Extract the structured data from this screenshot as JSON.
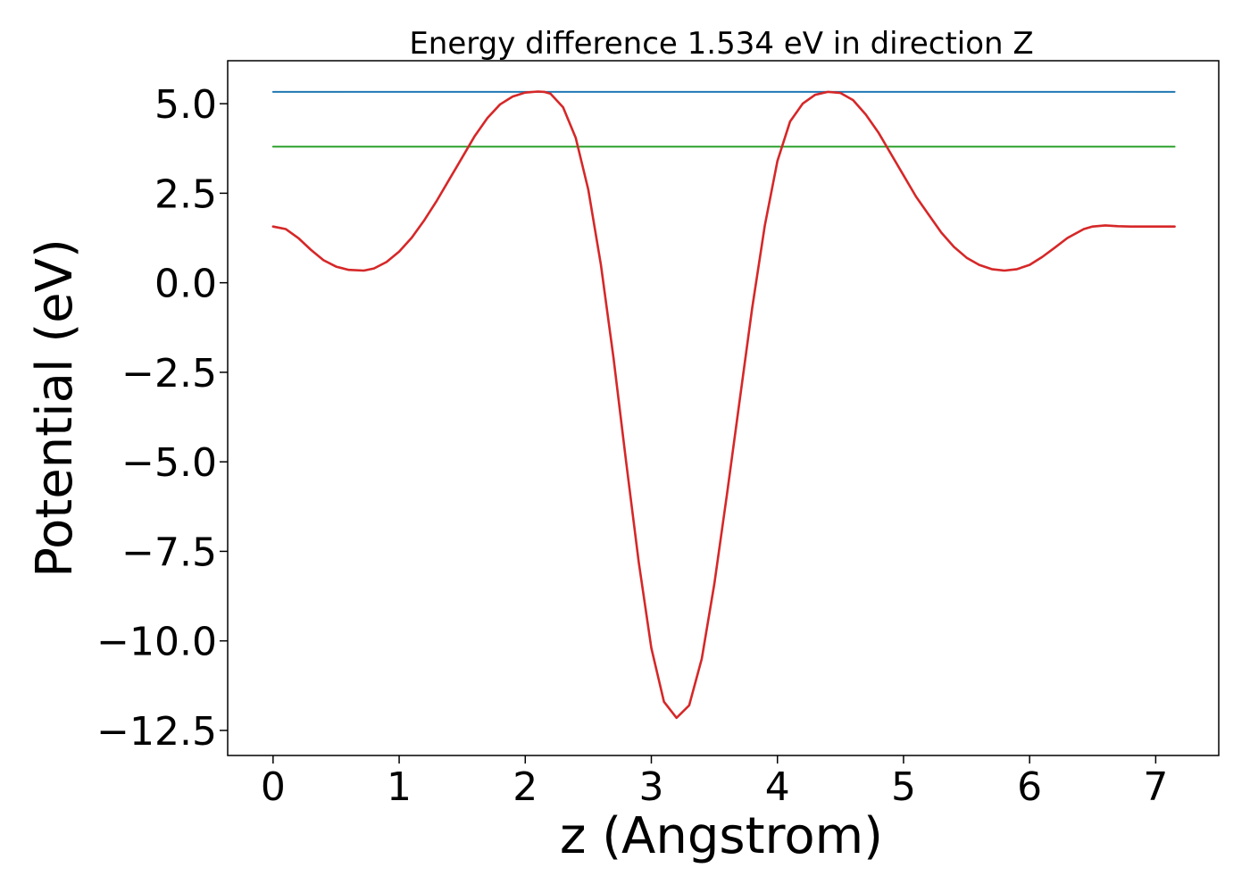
{
  "chart_data": {
    "type": "line",
    "title": "Energy difference 1.534 eV in direction Z",
    "xlabel": "z (Angstrom)",
    "ylabel": "Potential (eV)",
    "xlim": [
      -0.36,
      7.5
    ],
    "ylim": [
      -13.2,
      6.2
    ],
    "xticks": [
      0,
      1,
      2,
      3,
      4,
      5,
      6,
      7
    ],
    "yticks": [
      5.0,
      2.5,
      0.0,
      -2.5,
      -5.0,
      -7.5,
      -10.0,
      -12.5
    ],
    "xtick_labels": [
      "0",
      "1",
      "2",
      "3",
      "4",
      "5",
      "6",
      "7"
    ],
    "ytick_labels": [
      "5.0",
      "2.5",
      "0.0",
      "−2.5",
      "−5.0",
      "−7.5",
      "−10.0",
      "−12.5"
    ],
    "grid": false,
    "series": [
      {
        "color": "#1f77b4",
        "x": [
          0.0,
          7.15
        ],
        "y": [
          5.33,
          5.33
        ]
      },
      {
        "color": "#2ca02c",
        "x": [
          0.0,
          7.15
        ],
        "y": [
          3.8,
          3.8
        ]
      },
      {
        "color": "#d62728",
        "x": [
          0.0,
          0.1,
          0.2,
          0.3,
          0.4,
          0.5,
          0.6,
          0.72,
          0.8,
          0.9,
          1.0,
          1.1,
          1.2,
          1.3,
          1.4,
          1.5,
          1.6,
          1.7,
          1.8,
          1.9,
          2.0,
          2.1,
          2.15,
          2.2,
          2.3,
          2.4,
          2.5,
          2.6,
          2.7,
          2.8,
          2.9,
          3.0,
          3.1,
          3.2,
          3.3,
          3.4,
          3.5,
          3.6,
          3.7,
          3.8,
          3.9,
          4.0,
          4.1,
          4.2,
          4.3,
          4.4,
          4.5,
          4.6,
          4.7,
          4.8,
          4.9,
          5.0,
          5.05,
          5.1,
          5.2,
          5.3,
          5.4,
          5.5,
          5.6,
          5.7,
          5.8,
          5.9,
          6.0,
          6.1,
          6.2,
          6.3,
          6.43,
          6.5,
          6.6,
          6.7,
          6.8,
          6.9,
          7.0,
          7.1,
          7.15
        ],
        "y": [
          1.57,
          1.5,
          1.25,
          0.92,
          0.63,
          0.45,
          0.36,
          0.34,
          0.4,
          0.58,
          0.87,
          1.26,
          1.75,
          2.3,
          2.9,
          3.5,
          4.1,
          4.6,
          4.98,
          5.2,
          5.31,
          5.34,
          5.33,
          5.28,
          4.9,
          4.05,
          2.6,
          0.5,
          -2.1,
          -5.0,
          -7.8,
          -10.2,
          -11.7,
          -12.15,
          -11.8,
          -10.5,
          -8.4,
          -5.9,
          -3.3,
          -0.7,
          1.6,
          3.4,
          4.5,
          5.0,
          5.25,
          5.33,
          5.3,
          5.1,
          4.7,
          4.2,
          3.6,
          3.0,
          2.7,
          2.4,
          1.9,
          1.4,
          1.0,
          0.7,
          0.5,
          0.38,
          0.34,
          0.38,
          0.5,
          0.72,
          0.98,
          1.25,
          1.5,
          1.57,
          1.6,
          1.58,
          1.57,
          1.57,
          1.57,
          1.57,
          1.57
        ]
      }
    ]
  }
}
